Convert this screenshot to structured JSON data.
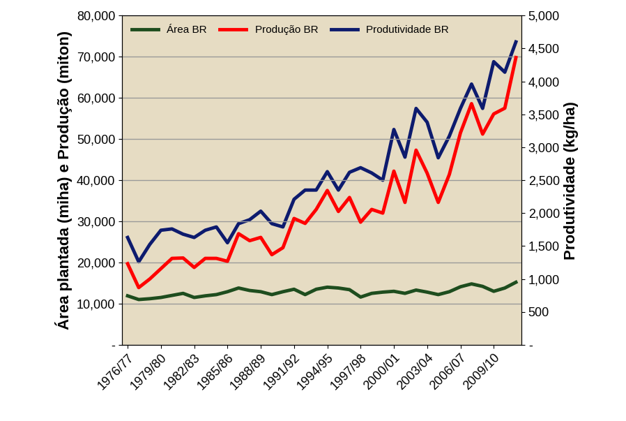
{
  "chart_data": {
    "type": "line",
    "categories": [
      "1976/77",
      null,
      null,
      "1979/80",
      null,
      null,
      "1982/83",
      null,
      null,
      "1985/86",
      null,
      null,
      "1988/89",
      null,
      null,
      "1991/92",
      null,
      null,
      "1994/95",
      null,
      null,
      "1997/98",
      null,
      null,
      "2000/01",
      null,
      null,
      "2003/04",
      null,
      null,
      "2006/07",
      null,
      null,
      "2009/10",
      null,
      null
    ],
    "y_label": "Área plantada (miha) e Produção (miton)",
    "y2_label": "Produtividade (kg/ha)",
    "ylim": [
      0,
      80000
    ],
    "yticks": [
      {
        "value": 0,
        "label": "-"
      },
      {
        "value": 10000,
        "label": "10,000"
      },
      {
        "value": 20000,
        "label": "20,000"
      },
      {
        "value": 30000,
        "label": "30,000"
      },
      {
        "value": 40000,
        "label": "40,000"
      },
      {
        "value": 50000,
        "label": "50,000"
      },
      {
        "value": 60000,
        "label": "60,000"
      },
      {
        "value": 70000,
        "label": "70,000"
      },
      {
        "value": 80000,
        "label": "80,000"
      }
    ],
    "y2lim": [
      0,
      5000
    ],
    "y2ticks": [
      {
        "value": 0,
        "label": "-"
      },
      500,
      {
        "value": 1000,
        "label": "1,000"
      },
      {
        "value": 1500,
        "label": "1,500"
      },
      {
        "value": 2000,
        "label": "2,000"
      },
      {
        "value": 2500,
        "label": "2,500"
      },
      {
        "value": 3000,
        "label": "3,000"
      },
      {
        "value": 3500,
        "label": "3,500"
      },
      {
        "value": 4000,
        "label": "4,000"
      },
      {
        "value": 4500,
        "label": "4,500"
      },
      {
        "value": 5000,
        "label": "5,000"
      }
    ],
    "grid": true,
    "legend": "upper left",
    "series": [
      {
        "name": "Área BR",
        "color": "#1e4d1e",
        "values": [
          11900,
          11000,
          11200,
          11500,
          12000,
          12500,
          11500,
          11900,
          12200,
          12900,
          13800,
          13200,
          12900,
          12200,
          12900,
          13500,
          12200,
          13500,
          14000,
          13800,
          13400,
          11600,
          12500,
          12800,
          13000,
          12500,
          13300,
          12800,
          12200,
          12900,
          14100,
          14800,
          14200,
          13000,
          13800,
          15200
        ]
      },
      {
        "name": "Produção BR",
        "color": "#ff0000",
        "values": [
          19700,
          13900,
          16000,
          18500,
          21000,
          21100,
          18800,
          21000,
          21000,
          20300,
          27000,
          25300,
          26100,
          21900,
          23600,
          30700,
          29500,
          32900,
          37500,
          32400,
          35800,
          29800,
          32900,
          32000,
          42200,
          34600,
          47300,
          41700,
          34600,
          41400,
          51500,
          58600,
          51200,
          56100,
          57500,
          69800
        ]
      },
      {
        "name": "Produtividade BR",
        "color": "#0d1b6e",
        "axis": "y2",
        "values": [
          1630,
          1260,
          1525,
          1740,
          1760,
          1680,
          1630,
          1740,
          1790,
          1550,
          1840,
          1900,
          2030,
          1840,
          1790,
          2210,
          2350,
          2350,
          2630,
          2350,
          2620,
          2690,
          2610,
          2500,
          3270,
          2850,
          3590,
          3380,
          2840,
          3170,
          3590,
          3960,
          3590,
          4300,
          4140,
          4600
        ]
      }
    ]
  }
}
